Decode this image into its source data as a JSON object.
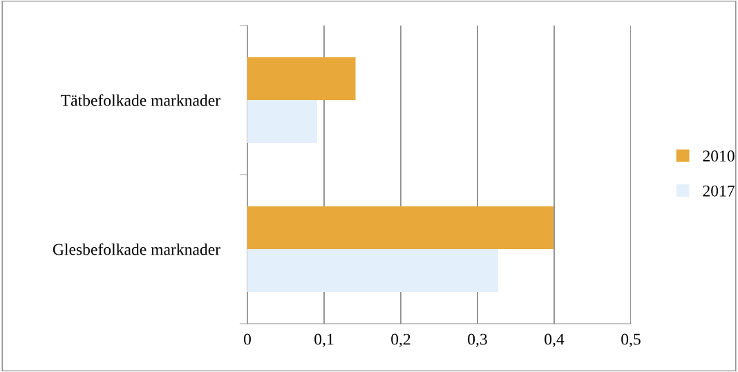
{
  "chart_data": {
    "type": "bar",
    "orientation": "horizontal",
    "categories": [
      "Tätbefolkade marknader",
      "Glesbefolkade marknader"
    ],
    "series": [
      {
        "name": "2010",
        "color": "#e8a93a",
        "values": [
          0.141,
          0.399
        ]
      },
      {
        "name": "2017",
        "color": "#e3f0fb",
        "values": [
          0.091,
          0.327
        ]
      }
    ],
    "xlim": [
      0,
      0.5
    ],
    "xticks": [
      0,
      {
        "value": 0.1,
        "label": "0,1"
      },
      {
        "value": 0.2,
        "label": "0,2"
      },
      {
        "value": 0.3,
        "label": "0,3"
      },
      {
        "value": 0.4,
        "label": "0,4"
      },
      {
        "value": 0.5,
        "label": "0,5"
      }
    ],
    "grid": "x",
    "legend": "right"
  }
}
